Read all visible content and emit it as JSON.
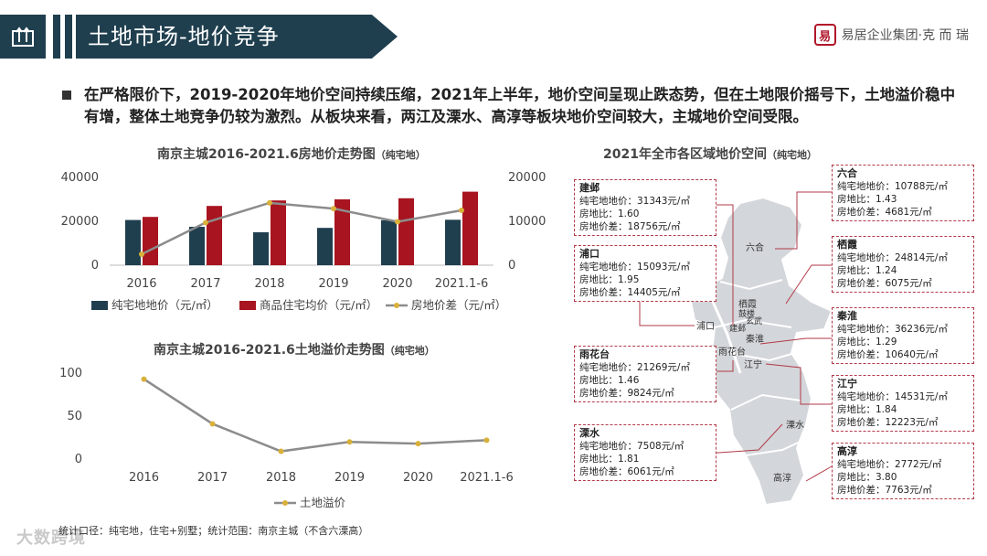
{
  "header": {
    "title": "土地市场-地价竞争",
    "logo_mark": "易",
    "logo_text": "易居企业集团·克 而 瑞"
  },
  "summary": "在严格限价下，2019-2020年地价空间持续压缩，2021年上半年，地价空间呈现止跌态势，但在土地限价摇号下，土地溢价稳中有增，整体土地竞争仍较为激烈。从板块来看，两江及溧水、高淳等板块地价空间较大，主城地价空间受限。",
  "chart1": {
    "title_main": "南京主城2016-2021.6房地价走势图",
    "title_small": "（纯宅地）"
  },
  "chart2": {
    "title_main": "南京主城2016-2021.6土地溢价走势图",
    "title_small": "（纯宅地）"
  },
  "map": {
    "title_main": "2021年全市各区域地价空间",
    "title_small": "（纯宅地）",
    "labels": {
      "liuhe": "六合",
      "qixia": "栖霞",
      "pukou": "浦口",
      "gulou": "鼓楼",
      "xuanwu": "玄武",
      "jianye": "建邺",
      "qinhuai": "秦淮",
      "yuhuatai": "雨花台",
      "jiangning": "江宁",
      "lishui": "溧水",
      "gaochun": "高淳"
    },
    "districts": [
      {
        "name": "建邺",
        "land": "纯宅地地价：31343元/㎡",
        "ratio": "房地比：1.60",
        "diff": "房地价差：18756元/㎡"
      },
      {
        "name": "浦口",
        "land": "纯宅地地价：15093元/㎡",
        "ratio": "房地比：1.95",
        "diff": "房地价差：14405元/㎡"
      },
      {
        "name": "雨花台",
        "land": "纯宅地地价：21269元/㎡",
        "ratio": "房地比：1.46",
        "diff": "房地价差：9824元/㎡"
      },
      {
        "name": "溧水",
        "land": "纯宅地地价：7508元/㎡",
        "ratio": "房地比：1.81",
        "diff": "房地价差：6061元/㎡"
      },
      {
        "name": "六合",
        "land": "纯宅地地价：10788元/㎡",
        "ratio": "房地比：1.43",
        "diff": "房地价差：4681元/㎡"
      },
      {
        "name": "栖霞",
        "land": "纯宅地地价：24814元/㎡",
        "ratio": "房地比：1.24",
        "diff": "房地价差：6075元/㎡"
      },
      {
        "name": "秦淮",
        "land": "纯宅地地价：36236元/㎡",
        "ratio": "房地比：1.29",
        "diff": "房地价差：10640元/㎡"
      },
      {
        "name": "江宁",
        "land": "纯宅地地价：14531元/㎡",
        "ratio": "房地比：1.84",
        "diff": "房地价差：12223元/㎡"
      },
      {
        "name": "高淳",
        "land": "纯宅地地价：2772元/㎡",
        "ratio": "房地比：3.80",
        "diff": "房地价差：7763元/㎡"
      }
    ]
  },
  "footnote": "统计口径：纯宅地，住宅+别墅；统计范围：南京主城（不含六溧高）",
  "watermark": "大数跨境",
  "colors": {
    "navy": "#1f3f4f",
    "red": "#a8141f",
    "line": "#8c8c8c",
    "marker": "#d9b13a"
  },
  "chart_data": [
    {
      "type": "bar",
      "title": "南京主城2016-2021.6房地价走势图（纯宅地）",
      "categories": [
        "2016",
        "2017",
        "2018",
        "2019",
        "2020",
        "2021.1-6"
      ],
      "series": [
        {
          "name": "纯宅地地价（元/㎡）",
          "values": [
            20600,
            17500,
            15000,
            17000,
            20500,
            20700
          ],
          "axis": "left"
        },
        {
          "name": "商品住宅均价（元/㎡）",
          "values": [
            22000,
            27000,
            29500,
            30000,
            30500,
            33500
          ],
          "axis": "left"
        },
        {
          "name": "房地价差（元/㎡）",
          "type": "line",
          "values": [
            2500,
            9700,
            14200,
            12900,
            9900,
            12500
          ],
          "axis": "right"
        }
      ],
      "ylim": [
        0,
        40000
      ],
      "yticks": [
        "40000",
        "20000",
        "0"
      ],
      "y2lim": [
        0,
        20000
      ],
      "y2ticks": [
        "20000",
        "10000",
        "0"
      ],
      "legend": [
        "纯宅地地价（元/㎡）",
        "商品住宅均价（元/㎡）",
        "房地价差（元/㎡）"
      ]
    },
    {
      "type": "line",
      "title": "南京主城2016-2021.6土地溢价走势图（纯宅地）",
      "categories": [
        "2016",
        "2017",
        "2018",
        "2019",
        "2020",
        "2021.1-6"
      ],
      "series": [
        {
          "name": "土地溢价",
          "values": [
            93,
            41,
            9,
            20,
            18,
            22
          ]
        }
      ],
      "ylim": [
        0,
        100
      ],
      "yticks": [
        "100",
        "50",
        "0"
      ],
      "legend": [
        "土地溢价"
      ]
    }
  ]
}
